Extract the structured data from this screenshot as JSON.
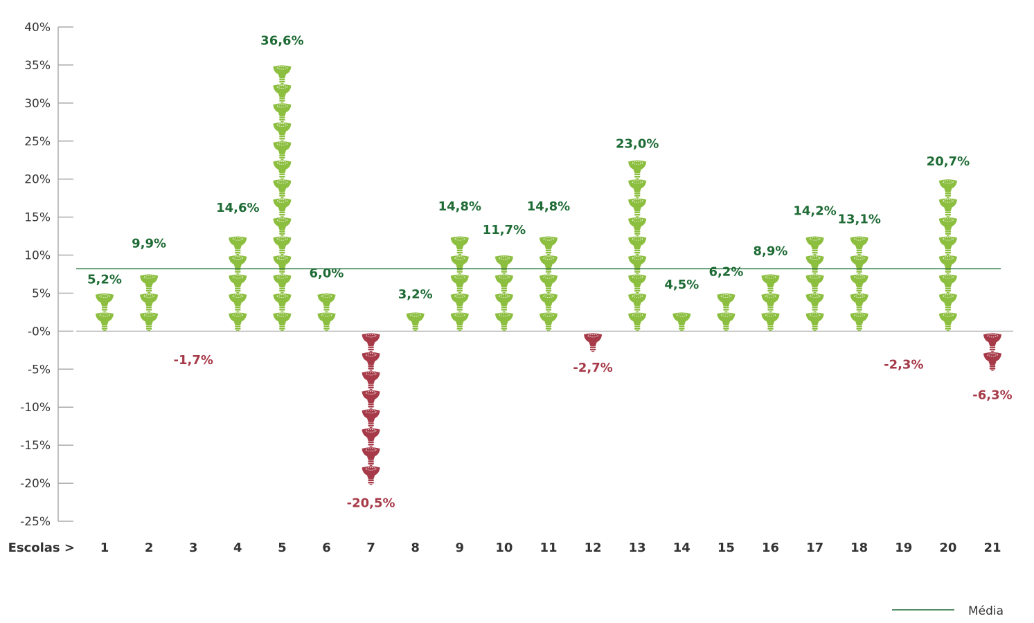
{
  "chart_data": {
    "type": "bar",
    "style": "pictograph",
    "icon": "light-bulb-icon",
    "xlabel": "Escolas >",
    "categories": [
      "1",
      "2",
      "3",
      "4",
      "5",
      "6",
      "7",
      "8",
      "9",
      "10",
      "11",
      "12",
      "13",
      "14",
      "15",
      "16",
      "17",
      "18",
      "19",
      "20",
      "21"
    ],
    "values": [
      5.2,
      9.9,
      -1.7,
      14.6,
      36.6,
      6.0,
      -20.5,
      3.2,
      14.8,
      11.7,
      14.8,
      -2.7,
      23.0,
      4.5,
      6.2,
      8.9,
      14.2,
      13.1,
      -2.3,
      20.7,
      -6.3
    ],
    "value_labels": [
      "5,2%",
      "9,9%",
      "-1,7%",
      "14,6%",
      "36,6%",
      "6,0%",
      "-20,5%",
      "3,2%",
      "14,8%",
      "11,7%",
      "14,8%",
      "-2,7%",
      "23,0%",
      "4,5%",
      "6,2%",
      "8,9%",
      "14,2%",
      "13,1%",
      "-2,3%",
      "20,7%",
      "-6,3%"
    ],
    "ylim": [
      -25,
      40
    ],
    "yticks": [
      40,
      35,
      30,
      25,
      20,
      15,
      10,
      5,
      0,
      -5,
      -10,
      -15,
      -20,
      -25
    ],
    "ytick_labels": [
      "40%",
      "35%",
      "30%",
      "25%",
      "20%",
      "15%",
      "10%",
      "5%",
      "-0%",
      "-5%",
      "-10%",
      "-15%",
      "-20%",
      "-25%"
    ],
    "average": 8.2,
    "legend": {
      "label": "Média",
      "position": "bottom-right"
    },
    "colors": {
      "positive_icon": "#8cbe3f",
      "negative_icon": "#a63a48",
      "positive_label": "#1e6b35",
      "negative_label": "#a63a48",
      "average_line": "#1e6b35",
      "axis": "#aaaaaa"
    }
  }
}
